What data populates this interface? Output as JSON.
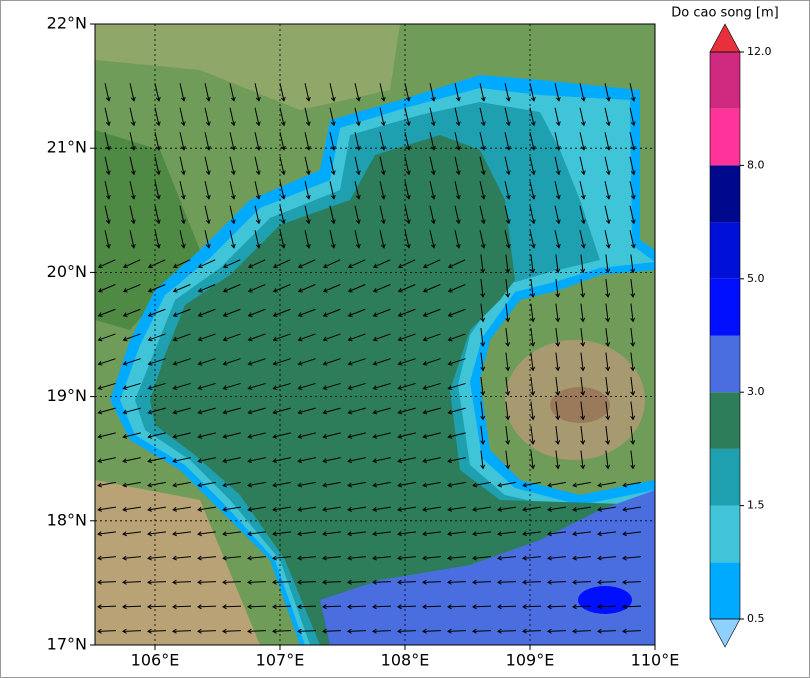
{
  "map": {
    "xlim": [
      105.52,
      110
    ],
    "ylim": [
      17,
      22
    ],
    "xticks": [
      {
        "value": 106,
        "label": "106°E"
      },
      {
        "value": 107,
        "label": "107°E"
      },
      {
        "value": 108,
        "label": "108°E"
      },
      {
        "value": 109,
        "label": "109°E"
      },
      {
        "value": 110,
        "label": "110°E"
      }
    ],
    "yticks": [
      {
        "value": 17,
        "label": "17°N"
      },
      {
        "value": 18,
        "label": "18°N"
      },
      {
        "value": 19,
        "label": "19°N"
      },
      {
        "value": 20,
        "label": "20°N"
      },
      {
        "value": 21,
        "label": "21°N"
      },
      {
        "value": 22,
        "label": "22°N"
      }
    ],
    "grid": true
  },
  "colorbar": {
    "title": "Do cao song [m]",
    "levels": [
      0.5,
      1,
      1.5,
      2,
      3,
      4,
      5,
      6,
      8,
      10,
      12
    ],
    "colors": [
      "#00aaff",
      "#40c4d8",
      "#1ea0b0",
      "#2d7d5a",
      "#4a6ee0",
      "#0010ff",
      "#0010d8",
      "#00088c",
      "#ff3399",
      "#d02a80"
    ],
    "under_color": "#8fd0ff",
    "over_color": "#e8303c",
    "ticks": [
      {
        "value": 0.5,
        "label": "0.5"
      },
      {
        "value": 1.5,
        "label": "1.5"
      },
      {
        "value": 3,
        "label": "3.0"
      },
      {
        "value": 5,
        "label": "5.0"
      },
      {
        "value": 8,
        "label": "8.0"
      },
      {
        "value": 12,
        "label": "12.0"
      }
    ]
  }
}
